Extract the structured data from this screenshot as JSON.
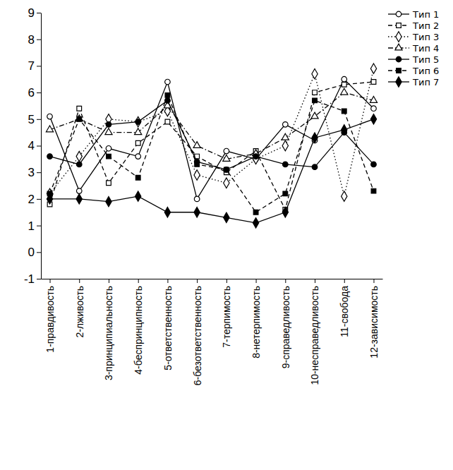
{
  "chart_data": {
    "type": "line",
    "categories": [
      "1-правдивость",
      "2-лживость",
      "3-принципиальность",
      "4-беспринципность",
      "5-ответственность",
      "6-безответственность",
      "7-терпимость",
      "8-нетерпимость",
      "9-справедливость",
      "10-несправедливость",
      "11-свобода",
      "12-зависимость"
    ],
    "ylim": [
      -1,
      9
    ],
    "yticks": [
      -1,
      0,
      1,
      2,
      3,
      4,
      5,
      6,
      7,
      8,
      9
    ],
    "legend": "top-right",
    "series": [
      {
        "name": "Тип 1",
        "color": "#000000",
        "marker": "circle-open",
        "line_style": "solid",
        "values": [
          5.1,
          2.3,
          3.9,
          3.6,
          6.4,
          2.0,
          3.8,
          3.5,
          4.8,
          4.2,
          6.5,
          5.4
        ]
      },
      {
        "name": "Тип 2",
        "color": "#000000",
        "marker": "square-open",
        "line_style": "dashed",
        "values": [
          1.8,
          5.4,
          2.6,
          4.1,
          4.9,
          3.6,
          3.0,
          3.8,
          1.6,
          6.0,
          6.3,
          6.4
        ]
      },
      {
        "name": "Тип 3",
        "color": "#000000",
        "marker": "diamond-open",
        "line_style": "dotted",
        "values": [
          2.2,
          3.6,
          5.0,
          4.9,
          5.3,
          2.9,
          2.6,
          3.5,
          4.0,
          6.7,
          2.1,
          6.9
        ]
      },
      {
        "name": "Тип 4",
        "color": "#000000",
        "marker": "triangle-open",
        "line_style": "dashdot",
        "values": [
          4.6,
          5.0,
          4.5,
          4.5,
          5.5,
          4.0,
          3.5,
          3.7,
          4.3,
          5.1,
          6.0,
          5.7
        ]
      },
      {
        "name": "Тип 5",
        "color": "#000000",
        "marker": "circle",
        "line_style": "solid",
        "values": [
          3.6,
          3.3,
          4.8,
          4.9,
          5.7,
          3.4,
          3.1,
          3.6,
          3.3,
          3.2,
          4.5,
          3.3
        ]
      },
      {
        "name": "Тип 6",
        "color": "#000000",
        "marker": "square",
        "line_style": "dashed",
        "values": [
          2.2,
          5.0,
          3.6,
          2.8,
          5.9,
          3.3,
          3.1,
          1.5,
          2.2,
          5.7,
          5.3,
          2.3
        ]
      },
      {
        "name": "Тип 7",
        "color": "#000000",
        "marker": "diamond",
        "line_style": "solid",
        "values": [
          2.0,
          2.0,
          1.9,
          2.1,
          1.5,
          1.5,
          1.3,
          1.1,
          1.5,
          4.3,
          4.6,
          5.0
        ]
      }
    ]
  }
}
